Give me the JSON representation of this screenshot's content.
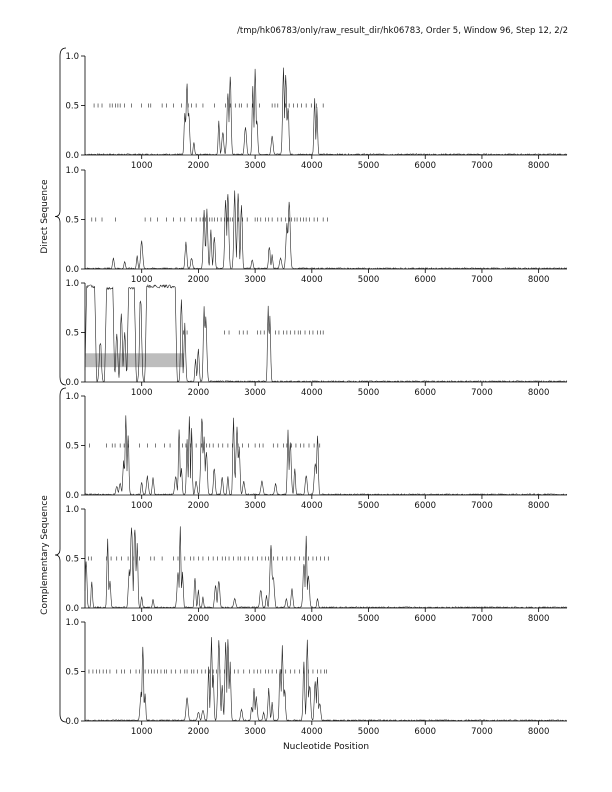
{
  "header": {
    "title": "/tmp/hk06783/only/raw_result_dir/hk06783, Order 5, Window 96, Step 12, 2/2"
  },
  "chart_data": {
    "type": "line",
    "xlabel": "Nucleotide Position",
    "group_labels": [
      "Direct Sequence",
      "Complementary Sequence"
    ],
    "xlim": [
      0,
      8500
    ],
    "ylim": [
      0,
      1
    ],
    "x_ticks": [
      1000,
      2000,
      3000,
      4000,
      5000,
      6000,
      7000,
      8000
    ],
    "y_ticks": [
      0.0,
      0.5,
      1.0
    ],
    "y_tick_labels": [
      "0.0",
      "0.5",
      "1.0"
    ],
    "colors": {
      "line": "#222222",
      "axis": "#000000",
      "highlight": "#bdbdbd"
    },
    "panels": [
      {
        "group": "Direct Sequence",
        "peaks": [
          [
            1760,
            0.45
          ],
          [
            1800,
            0.75
          ],
          [
            1830,
            0.45
          ],
          [
            1920,
            0.15
          ],
          [
            2360,
            0.35
          ],
          [
            2430,
            0.25
          ],
          [
            2520,
            0.65
          ],
          [
            2560,
            0.9
          ],
          [
            2830,
            0.3
          ],
          [
            2960,
            0.8
          ],
          [
            3000,
            0.9
          ],
          [
            3030,
            0.4
          ],
          [
            3300,
            0.2
          ],
          [
            3500,
            0.9
          ],
          [
            3540,
            0.95
          ],
          [
            3580,
            0.55
          ],
          [
            4050,
            0.6
          ],
          [
            4090,
            0.5
          ]
        ],
        "orf_marks": [
          160,
          230,
          300,
          440,
          480,
          540,
          580,
          620,
          700,
          820,
          1000,
          1120,
          1160,
          1360,
          1440,
          1560,
          1700,
          1820,
          1880,
          1960,
          2080,
          2280,
          2480,
          2560,
          2650,
          2720,
          2760,
          2860,
          2960,
          3080,
          3300,
          3350,
          3400,
          3540,
          3600,
          3680,
          3750,
          3820,
          3900,
          3990,
          4080,
          4200
        ]
      },
      {
        "group": "Direct Sequence",
        "peaks": [
          [
            500,
            0.12
          ],
          [
            700,
            0.08
          ],
          [
            920,
            0.15
          ],
          [
            1000,
            0.3
          ],
          [
            1780,
            0.3
          ],
          [
            1880,
            0.12
          ],
          [
            2100,
            0.6
          ],
          [
            2150,
            0.65
          ],
          [
            2220,
            0.4
          ],
          [
            2280,
            0.35
          ],
          [
            2480,
            0.75
          ],
          [
            2520,
            0.85
          ],
          [
            2640,
            0.8
          ],
          [
            2700,
            0.82
          ],
          [
            2760,
            0.75
          ],
          [
            2950,
            0.1
          ],
          [
            3250,
            0.25
          ],
          [
            3300,
            0.15
          ],
          [
            3450,
            0.12
          ],
          [
            3560,
            0.5
          ],
          [
            3600,
            0.75
          ]
        ],
        "orf_marks": [
          120,
          190,
          300,
          540,
          1060,
          1160,
          1280,
          1440,
          1560,
          1680,
          1760,
          1880,
          1960,
          2030,
          2080,
          2120,
          2200,
          2240,
          2280,
          2340,
          2400,
          2460,
          2520,
          2560,
          2600,
          2700,
          2780,
          2860,
          3000,
          3040,
          3100,
          3180,
          3240,
          3300,
          3400,
          3460,
          3540,
          3600,
          3640,
          3700,
          3740,
          3800,
          3850,
          3900,
          3960,
          4040,
          4100,
          4200,
          4280
        ]
      },
      {
        "group": "Direct Sequence",
        "highlight_range": [
          0,
          1750
        ],
        "highlight_y": [
          0.15,
          0.29
        ],
        "plateaus": [
          [
            0,
            200,
            0.98
          ],
          [
            350,
            520,
            0.96
          ],
          [
            740,
            900,
            0.96
          ],
          [
            1060,
            1620,
            0.98
          ]
        ],
        "peaks": [
          [
            270,
            0.45
          ],
          [
            560,
            0.5
          ],
          [
            640,
            0.8
          ],
          [
            700,
            0.55
          ],
          [
            980,
            0.95
          ],
          [
            1700,
            0.95
          ],
          [
            1760,
            0.6
          ],
          [
            1950,
            0.25
          ],
          [
            2000,
            0.35
          ],
          [
            2100,
            0.8
          ],
          [
            2130,
            0.72
          ],
          [
            3230,
            0.9
          ],
          [
            3260,
            0.75
          ]
        ],
        "orf_marks": [
          1740,
          1800,
          2460,
          2540,
          2720,
          2790,
          2860,
          3040,
          3100,
          3160,
          3360,
          3420,
          3500,
          3560,
          3620,
          3700,
          3760,
          3800,
          3880,
          3960,
          4020,
          4100,
          4150,
          4200
        ]
      },
      {
        "group": "Complementary Sequence",
        "peaks": [
          [
            560,
            0.1
          ],
          [
            620,
            0.12
          ],
          [
            680,
            0.35
          ],
          [
            720,
            0.88
          ],
          [
            760,
            0.7
          ],
          [
            1000,
            0.15
          ],
          [
            1100,
            0.2
          ],
          [
            1200,
            0.18
          ],
          [
            1600,
            0.2
          ],
          [
            1660,
            0.75
          ],
          [
            1700,
            0.3
          ],
          [
            1800,
            0.6
          ],
          [
            1840,
            0.9
          ],
          [
            1880,
            0.72
          ],
          [
            1960,
            0.15
          ],
          [
            2060,
            0.85
          ],
          [
            2100,
            0.6
          ],
          [
            2140,
            0.5
          ],
          [
            2280,
            0.3
          ],
          [
            2420,
            0.2
          ],
          [
            2520,
            0.2
          ],
          [
            2620,
            0.82
          ],
          [
            2680,
            0.7
          ],
          [
            2720,
            0.55
          ],
          [
            2800,
            0.15
          ],
          [
            3120,
            0.15
          ],
          [
            3360,
            0.12
          ],
          [
            3580,
            0.7
          ],
          [
            3620,
            0.55
          ],
          [
            3700,
            0.3
          ],
          [
            3900,
            0.22
          ],
          [
            4060,
            0.35
          ],
          [
            4100,
            0.65
          ]
        ],
        "orf_marks": [
          80,
          380,
          480,
          530,
          620,
          690,
          760,
          960,
          1100,
          1240,
          1400,
          1500,
          1720,
          1780,
          1860,
          1960,
          2060,
          2140,
          2200,
          2260,
          2350,
          2430,
          2520,
          2600,
          2700,
          2780,
          2880,
          3000,
          3080,
          3140,
          3320,
          3400,
          3500,
          3560,
          3640,
          3720,
          3800,
          3860,
          3950,
          4040,
          4140
        ]
      },
      {
        "group": "Complementary Sequence",
        "peaks": [
          [
            20,
            0.55
          ],
          [
            120,
            0.3
          ],
          [
            400,
            0.72
          ],
          [
            440,
            0.3
          ],
          [
            780,
            0.4
          ],
          [
            820,
            0.95
          ],
          [
            880,
            0.88
          ],
          [
            920,
            0.7
          ],
          [
            1000,
            0.12
          ],
          [
            1200,
            0.1
          ],
          [
            1640,
            0.4
          ],
          [
            1680,
            0.88
          ],
          [
            1720,
            0.4
          ],
          [
            1940,
            0.35
          ],
          [
            2000,
            0.2
          ],
          [
            2080,
            0.12
          ],
          [
            2300,
            0.25
          ],
          [
            2360,
            0.3
          ],
          [
            2640,
            0.1
          ],
          [
            3100,
            0.2
          ],
          [
            3200,
            0.15
          ],
          [
            3280,
            0.7
          ],
          [
            3320,
            0.35
          ],
          [
            3550,
            0.1
          ],
          [
            3650,
            0.2
          ],
          [
            3860,
            0.5
          ],
          [
            3900,
            0.8
          ],
          [
            3940,
            0.35
          ],
          [
            4100,
            0.1
          ]
        ],
        "orf_marks": [
          60,
          110,
          380,
          460,
          560,
          640,
          760,
          860,
          960,
          1160,
          1220,
          1360,
          1560,
          1640,
          1760,
          1860,
          1920,
          2000,
          2080,
          2180,
          2260,
          2340,
          2420,
          2480,
          2540,
          2620,
          2700,
          2740,
          2820,
          2880,
          2960,
          3040,
          3120,
          3180,
          3240,
          3320,
          3400,
          3480,
          3560,
          3620,
          3700,
          3780,
          3860,
          3940,
          4020,
          4080,
          4150,
          4220,
          4290
        ]
      },
      {
        "group": "Complementary Sequence",
        "peaks": [
          [
            990,
            0.3
          ],
          [
            1020,
            0.85
          ],
          [
            1060,
            0.3
          ],
          [
            1800,
            0.25
          ],
          [
            2000,
            0.1
          ],
          [
            2080,
            0.12
          ],
          [
            2180,
            0.6
          ],
          [
            2230,
            0.9
          ],
          [
            2260,
            0.5
          ],
          [
            2360,
            0.85
          ],
          [
            2420,
            0.4
          ],
          [
            2480,
            0.92
          ],
          [
            2520,
            0.95
          ],
          [
            2560,
            0.6
          ],
          [
            2760,
            0.12
          ],
          [
            2940,
            0.15
          ],
          [
            2980,
            0.35
          ],
          [
            3020,
            0.25
          ],
          [
            3150,
            0.1
          ],
          [
            3240,
            0.35
          ],
          [
            3300,
            0.2
          ],
          [
            3440,
            0.6
          ],
          [
            3480,
            0.8
          ],
          [
            3520,
            0.35
          ],
          [
            3860,
            0.6
          ],
          [
            3920,
            0.88
          ],
          [
            3960,
            0.4
          ],
          [
            4060,
            0.45
          ],
          [
            4100,
            0.5
          ],
          [
            4140,
            0.2
          ]
        ],
        "orf_marks": [
          70,
          140,
          200,
          260,
          320,
          380,
          440,
          560,
          640,
          700,
          800,
          900,
          960,
          1060,
          1120,
          1170,
          1220,
          1280,
          1340,
          1400,
          1440,
          1520,
          1600,
          1680,
          1760,
          1800,
          1880,
          1920,
          1980,
          2060,
          2120,
          2200,
          2260,
          2320,
          2380,
          2460,
          2560,
          2640,
          2700,
          2800,
          2900,
          2980,
          3040,
          3100,
          3180,
          3240,
          3300,
          3380,
          3460,
          3540,
          3620,
          3700,
          3780,
          3860,
          3940,
          4020,
          4100,
          4160,
          4220,
          4260
        ]
      }
    ]
  }
}
